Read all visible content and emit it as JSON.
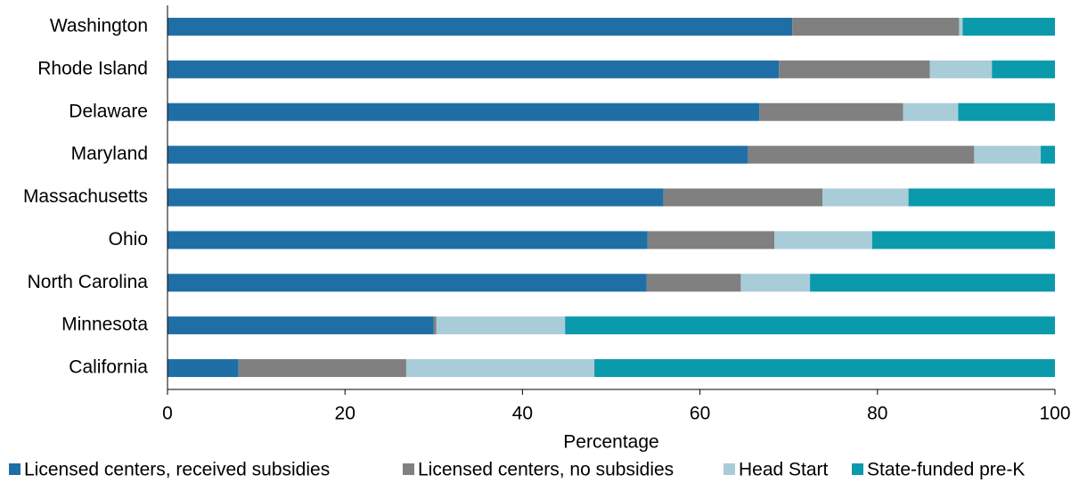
{
  "chart_data": {
    "type": "stacked-barh",
    "categories": [
      "Washington",
      "Rhode Island",
      "Delaware",
      "Maryland",
      "Massachusetts",
      "Ohio",
      "North Carolina",
      "Minnesota",
      "California"
    ],
    "series": [
      {
        "name": "Licensed centers, received subsidies",
        "color": "#1f6fa6",
        "values": [
          70.4,
          68.9,
          66.7,
          65.4,
          55.9,
          54.1,
          54.0,
          30.0,
          8.0
        ]
      },
      {
        "name": "Licensed centers, no subsidies",
        "color": "#808080",
        "values": [
          18.8,
          17.0,
          16.2,
          25.5,
          17.9,
          14.3,
          10.6,
          0.3,
          18.9
        ]
      },
      {
        "name": "Head Start",
        "color": "#a9ccd9",
        "values": [
          0.4,
          7.0,
          6.2,
          7.5,
          9.7,
          11.0,
          7.8,
          14.5,
          21.2
        ]
      },
      {
        "name": "State-funded pre-K",
        "color": "#0a9aab",
        "values": [
          10.4,
          7.1,
          10.9,
          1.6,
          16.5,
          20.6,
          27.6,
          55.2,
          51.9
        ]
      }
    ],
    "xlabel": "Percentage",
    "xlim": [
      0,
      100
    ],
    "xticks": [
      0,
      20,
      40,
      60,
      80,
      100
    ],
    "legend": "bottom"
  }
}
